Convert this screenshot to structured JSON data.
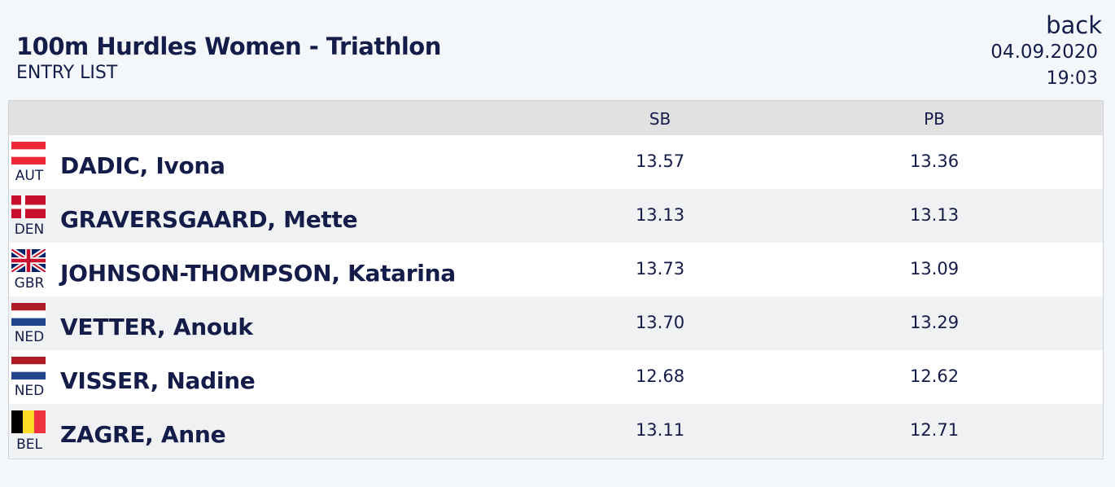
{
  "header": {
    "title": "100m Hurdles Women - Triathlon",
    "subtitle": "ENTRY LIST",
    "back_label": "back",
    "date": "04.09.2020",
    "time": "19:03"
  },
  "table": {
    "columns": {
      "sb": "SB",
      "pb": "PB"
    },
    "rows": [
      {
        "country": "AUT",
        "flag": "flag-austria-icon",
        "name": "DADIC, Ivona",
        "sb": "13.57",
        "pb": "13.36"
      },
      {
        "country": "DEN",
        "flag": "flag-denmark-icon",
        "name": "GRAVERSGAARD, Mette",
        "sb": "13.13",
        "pb": "13.13"
      },
      {
        "country": "GBR",
        "flag": "flag-great-britain-icon",
        "name": "JOHNSON-THOMPSON, Katarina",
        "sb": "13.73",
        "pb": "13.09"
      },
      {
        "country": "NED",
        "flag": "flag-netherlands-icon",
        "name": "VETTER, Anouk",
        "sb": "13.70",
        "pb": "13.29"
      },
      {
        "country": "NED",
        "flag": "flag-netherlands-icon",
        "name": "VISSER, Nadine",
        "sb": "12.68",
        "pb": "12.62"
      },
      {
        "country": "BEL",
        "flag": "flag-belgium-icon",
        "name": "ZAGRE, Anne",
        "sb": "13.11",
        "pb": "12.71"
      }
    ]
  }
}
